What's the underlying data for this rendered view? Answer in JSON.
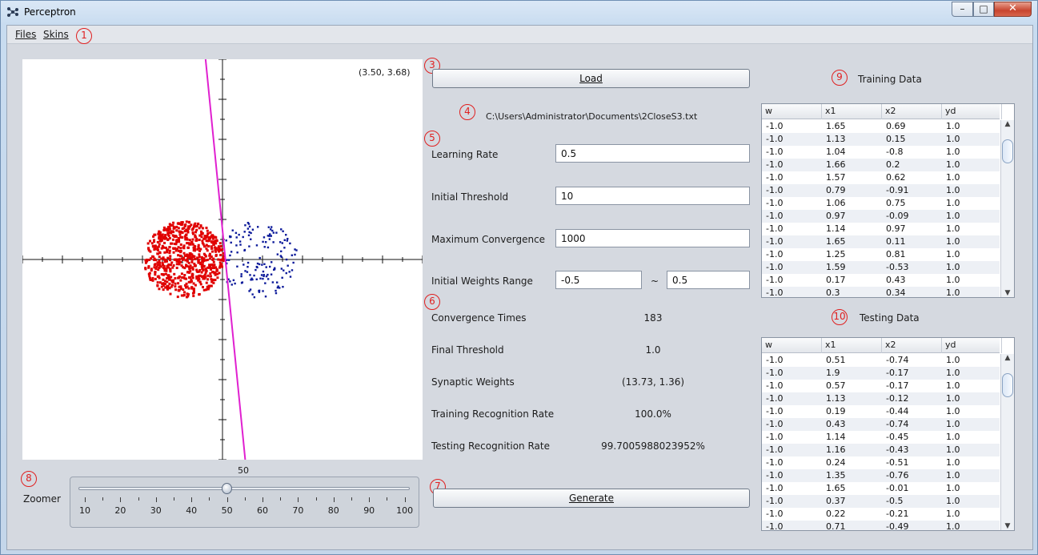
{
  "window": {
    "title": "Perceptron",
    "min_glyph": "–",
    "max_glyph": "□",
    "close_glyph": "✕"
  },
  "menu": {
    "files": "Files",
    "skins": "Skins"
  },
  "markers": [
    "1",
    "2",
    "3",
    "4",
    "5",
    "6",
    "7",
    "8",
    "9",
    "10"
  ],
  "plot": {
    "coord_readout": "(3.50, 3.68)",
    "class1_color": "#e00000",
    "class2_color": "#0c1a9a",
    "line_color": "#e020d0",
    "weights": [
      13.73,
      1.36
    ],
    "threshold": 1.0
  },
  "file": {
    "load_label": "Load",
    "path": "C:\\Users\\Administrator\\Documents\\2CloseS3.txt"
  },
  "params": {
    "learning_rate_label": "Learning Rate",
    "learning_rate": "0.5",
    "initial_threshold_label": "Initial Threshold",
    "initial_threshold": "10",
    "max_convergence_label": "Maximum Convergence",
    "max_convergence": "1000",
    "weights_range_label": "Initial Weights Range",
    "weights_min": "-0.5",
    "weights_sep": "~",
    "weights_max": "0.5"
  },
  "results": {
    "convergence_label": "Convergence Times",
    "convergence": "183",
    "final_threshold_label": "Final Threshold",
    "final_threshold": "1.0",
    "synaptic_label": "Synaptic Weights",
    "synaptic": "(13.73, 1.36)",
    "training_rate_label": "Training Recognition Rate",
    "training_rate": "100.0%",
    "testing_rate_label": "Testing Recognition Rate",
    "testing_rate": "99.7005988023952%"
  },
  "generate_label": "Generate",
  "zoomer": {
    "label": "Zoomer",
    "value": "50",
    "ticks": [
      "10",
      "20",
      "30",
      "40",
      "50",
      "60",
      "70",
      "80",
      "90",
      "100"
    ]
  },
  "training": {
    "title": "Training Data",
    "columns": [
      "w",
      "x1",
      "x2",
      "yd"
    ],
    "rows": [
      [
        "-1.0",
        "1.65",
        "0.69",
        "1.0"
      ],
      [
        "-1.0",
        "1.13",
        "0.15",
        "1.0"
      ],
      [
        "-1.0",
        "1.04",
        "-0.8",
        "1.0"
      ],
      [
        "-1.0",
        "1.66",
        "0.2",
        "1.0"
      ],
      [
        "-1.0",
        "1.57",
        "0.62",
        "1.0"
      ],
      [
        "-1.0",
        "0.79",
        "-0.91",
        "1.0"
      ],
      [
        "-1.0",
        "1.06",
        "0.75",
        "1.0"
      ],
      [
        "-1.0",
        "0.97",
        "-0.09",
        "1.0"
      ],
      [
        "-1.0",
        "1.14",
        "0.97",
        "1.0"
      ],
      [
        "-1.0",
        "1.65",
        "0.11",
        "1.0"
      ],
      [
        "-1.0",
        "1.25",
        "0.81",
        "1.0"
      ],
      [
        "-1.0",
        "1.59",
        "-0.53",
        "1.0"
      ],
      [
        "-1.0",
        "0.17",
        "0.43",
        "1.0"
      ],
      [
        "-1.0",
        "0.3",
        "0.34",
        "1.0"
      ]
    ]
  },
  "testing": {
    "title": "Testing Data",
    "columns": [
      "w",
      "x1",
      "x2",
      "yd"
    ],
    "rows": [
      [
        "-1.0",
        "0.51",
        "-0.74",
        "1.0"
      ],
      [
        "-1.0",
        "1.9",
        "-0.17",
        "1.0"
      ],
      [
        "-1.0",
        "0.57",
        "-0.17",
        "1.0"
      ],
      [
        "-1.0",
        "1.13",
        "-0.12",
        "1.0"
      ],
      [
        "-1.0",
        "0.19",
        "-0.44",
        "1.0"
      ],
      [
        "-1.0",
        "0.43",
        "-0.74",
        "1.0"
      ],
      [
        "-1.0",
        "1.14",
        "-0.45",
        "1.0"
      ],
      [
        "-1.0",
        "1.16",
        "-0.43",
        "1.0"
      ],
      [
        "-1.0",
        "0.24",
        "-0.51",
        "1.0"
      ],
      [
        "-1.0",
        "1.35",
        "-0.76",
        "1.0"
      ],
      [
        "-1.0",
        "1.65",
        "-0.01",
        "1.0"
      ],
      [
        "-1.0",
        "0.37",
        "-0.5",
        "1.0"
      ],
      [
        "-1.0",
        "0.22",
        "-0.21",
        "1.0"
      ],
      [
        "-1.0",
        "0.71",
        "-0.49",
        "1.0"
      ]
    ]
  }
}
